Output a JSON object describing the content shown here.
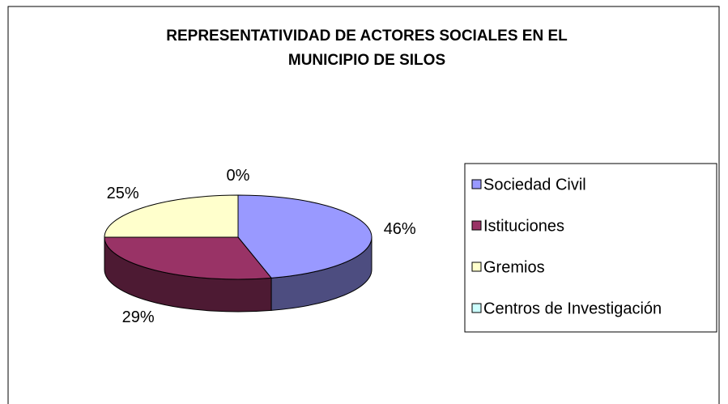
{
  "chart_data": {
    "type": "pie3d",
    "title": "REPRESENTATIVIDAD DE ACTORES SOCIALES EN EL MUNICIPIO DE SILOS",
    "categories": [
      "Sociedad Civil",
      "Istituciones",
      "Gremios",
      "Centros de Investigación"
    ],
    "values": [
      46,
      29,
      25,
      0
    ],
    "value_labels": [
      "46%",
      "29%",
      "25%",
      "0%"
    ],
    "colors": [
      "#9999ff",
      "#993366",
      "#ffffcc",
      "#ccffff"
    ],
    "legend": "right"
  }
}
